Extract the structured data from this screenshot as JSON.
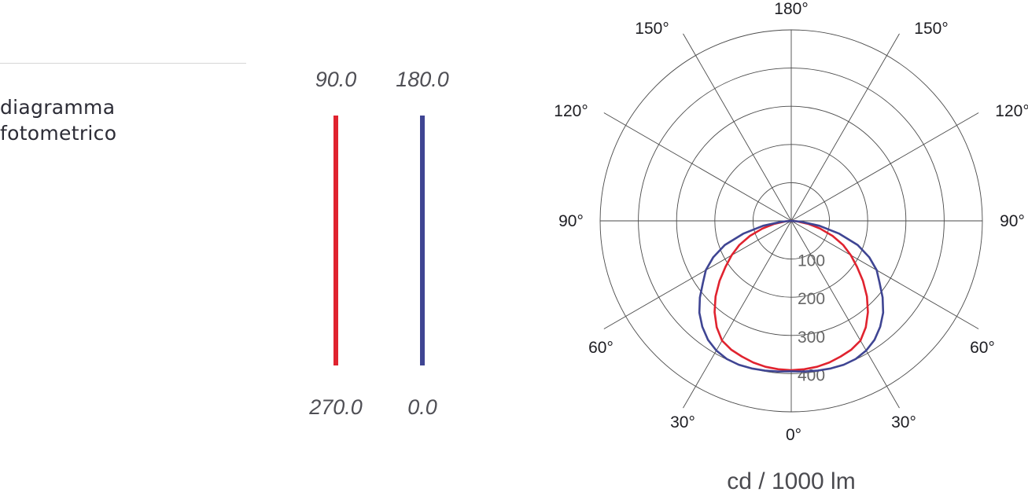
{
  "header": {
    "title_line1": "diagramma",
    "title_line2": "fotometrico"
  },
  "legend": {
    "series": [
      {
        "top_label": "90.0",
        "bottom_label": "270.0",
        "color": "#e0232f"
      },
      {
        "top_label": "180.0",
        "bottom_label": "0.0",
        "color": "#3f4593"
      }
    ]
  },
  "chart_data": {
    "type": "polar-line",
    "unit": "cd / 1000 lm",
    "radial_ticks": [
      100,
      200,
      300,
      400
    ],
    "radial_max": 500,
    "angle_labels": [
      "0°",
      "30°",
      "60°",
      "90°",
      "120°",
      "150°",
      "180°",
      "150°",
      "120°",
      "90°",
      "60°",
      "30°"
    ],
    "grid": true,
    "series": [
      {
        "color": "#e0232f",
        "angles": [
          0,
          5,
          10,
          15,
          20,
          25,
          30,
          35,
          40,
          45,
          50,
          55,
          60,
          65,
          70,
          75,
          80,
          85,
          90
        ],
        "values": [
          391,
          390,
          388,
          384,
          378,
          372,
          362,
          340,
          312,
          280,
          245,
          210,
          180,
          150,
          115,
          78,
          45,
          15,
          0
        ]
      },
      {
        "color": "#3f4593",
        "angles": [
          0,
          5,
          10,
          15,
          20,
          25,
          30,
          35,
          40,
          45,
          50,
          55,
          60,
          65,
          70,
          75,
          80,
          85,
          90
        ],
        "values": [
          394,
          396,
          398,
          400,
          401,
          399,
          392,
          380,
          362,
          340,
          312,
          282,
          258,
          225,
          185,
          130,
          75,
          25,
          0
        ]
      }
    ]
  }
}
